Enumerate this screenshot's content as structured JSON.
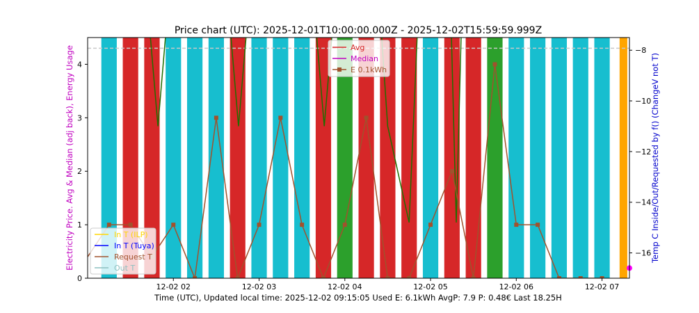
{
  "chart_data": {
    "type": "bar",
    "title": "Price chart (UTC): 2025-12-01T10:00:00.000Z - 2025-12-02T15:59:59.999Z",
    "xlabel": "Time (UTC), Updated local time: 2025-12-02 09:15:05 Used E: 6.1kWh AvgP: 7.9 P: 0.48€ Last 18.25H",
    "ylabel_left": "Electricity Price. Avg & Median (adj back), Energy Usage",
    "ylabel_right": "Temp C Inside/Out/Requested by f() (ChangeV not T)",
    "x_tick_labels": [
      "12-02 02",
      "12-02 03",
      "12-02 04",
      "12-02 05",
      "12-02 06",
      "12-02 07"
    ],
    "x_tick_hours": [
      2,
      3,
      4,
      5,
      6,
      7
    ],
    "xlim_hours": [
      1.0,
      7.32
    ],
    "ylim_left": [
      0,
      4.5
    ],
    "y_ticks_left": [
      0,
      1,
      2,
      3,
      4
    ],
    "ylim_right": [
      -17,
      -7.5
    ],
    "y_ticks_right": [
      -8,
      -10,
      -12,
      -14,
      -16
    ],
    "bar_width_hours": 0.18,
    "colors": {
      "cyan": "#17becf",
      "red": "#d62728",
      "green": "#2ca02c",
      "orange": "#ffa500",
      "energy": "#a0522d",
      "avg_line": "#d62728",
      "median": "#c000c0",
      "dark_green": "#1f6e00",
      "dashed": "#c8c8c8"
    },
    "bars": [
      {
        "hour": 1.25,
        "color": "cyan"
      },
      {
        "hour": 1.5,
        "color": "red"
      },
      {
        "hour": 1.75,
        "color": "red"
      },
      {
        "hour": 2.0,
        "color": "cyan"
      },
      {
        "hour": 2.25,
        "color": "cyan"
      },
      {
        "hour": 2.5,
        "color": "cyan"
      },
      {
        "hour": 2.75,
        "color": "red"
      },
      {
        "hour": 3.0,
        "color": "cyan"
      },
      {
        "hour": 3.25,
        "color": "cyan"
      },
      {
        "hour": 3.5,
        "color": "cyan"
      },
      {
        "hour": 3.75,
        "color": "red"
      },
      {
        "hour": 4.0,
        "color": "green"
      },
      {
        "hour": 4.25,
        "color": "red"
      },
      {
        "hour": 4.5,
        "color": "red"
      },
      {
        "hour": 4.75,
        "color": "red"
      },
      {
        "hour": 5.0,
        "color": "cyan"
      },
      {
        "hour": 5.25,
        "color": "red"
      },
      {
        "hour": 5.5,
        "color": "red"
      },
      {
        "hour": 5.75,
        "color": "green"
      },
      {
        "hour": 6.0,
        "color": "cyan"
      },
      {
        "hour": 6.25,
        "color": "cyan"
      },
      {
        "hour": 6.5,
        "color": "cyan"
      },
      {
        "hour": 6.75,
        "color": "cyan"
      },
      {
        "hour": 7.0,
        "color": "cyan"
      },
      {
        "hour": 7.25,
        "color": "orange",
        "narrow": true
      }
    ],
    "energy_series": {
      "name": "E 0.1kWh",
      "x": [
        1.0,
        1.25,
        1.5,
        1.75,
        2.0,
        2.25,
        2.5,
        2.75,
        3.0,
        3.25,
        3.5,
        3.75,
        4.0,
        4.25,
        4.5,
        4.75,
        5.0,
        5.25,
        5.5,
        5.75,
        6.0,
        6.25,
        6.5,
        6.75,
        7.0
      ],
      "y": [
        0.4,
        1.0,
        1.0,
        0.4,
        1.0,
        0.0,
        3.0,
        0.0,
        1.0,
        3.0,
        1.0,
        0.0,
        1.0,
        3.0,
        0.0,
        0.0,
        1.0,
        2.0,
        0.0,
        4.0,
        1.0,
        1.0,
        0.0,
        0.0,
        0.0
      ]
    },
    "requested_temp_series": {
      "x": [
        1.72,
        1.82,
        1.92,
        2.66,
        2.76,
        2.86,
        3.66,
        3.76,
        3.86,
        4.42,
        4.5,
        4.75,
        4.85,
        5.24,
        5.3,
        5.36
      ],
      "y": [
        -7.0,
        -11.0,
        -7.0,
        -7.0,
        -11.0,
        -7.0,
        -7.0,
        -11.0,
        -7.0,
        -7.0,
        -11.0,
        -14.8,
        -7.0,
        -7.0,
        -14.8,
        -7.0
      ]
    },
    "avg_line_value": 4.3,
    "last_point": {
      "hour": 7.32,
      "temp": -16.6
    },
    "legend_upper": [
      {
        "label": "Avg",
        "color": "avg_line",
        "marker": false
      },
      {
        "label": "Median",
        "color": "median",
        "marker": false
      },
      {
        "label": "E 0.1kWh",
        "color": "energy",
        "marker": true
      }
    ],
    "legend_lower": [
      {
        "label": "In T (ILP)",
        "color": "#ffd700"
      },
      {
        "label": "In T (Tuya)",
        "color": "#0000ff"
      },
      {
        "label": "Request T",
        "color": "#a0522d"
      },
      {
        "label": "Out T",
        "color": "#8cc0c0"
      }
    ]
  }
}
